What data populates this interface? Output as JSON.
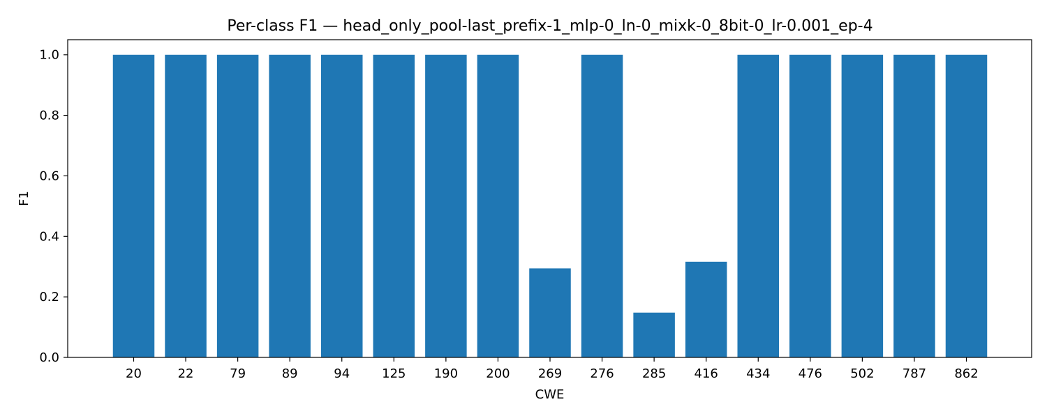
{
  "chart_data": {
    "type": "bar",
    "title": "Per-class F1 — head_only_pool-last_prefix-1_mlp-0_ln-0_mixk-0_8bit-0_lr-0.001_ep-4",
    "xlabel": "CWE",
    "ylabel": "F1",
    "categories": [
      "20",
      "22",
      "79",
      "89",
      "94",
      "125",
      "190",
      "200",
      "269",
      "276",
      "285",
      "416",
      "434",
      "476",
      "502",
      "787",
      "862"
    ],
    "values": [
      1.0,
      1.0,
      1.0,
      1.0,
      1.0,
      1.0,
      1.0,
      1.0,
      0.294,
      1.0,
      0.148,
      0.316,
      1.0,
      1.0,
      1.0,
      1.0,
      1.0
    ],
    "ylim": [
      0,
      1.05
    ],
    "yticks": [
      "0.0",
      "0.2",
      "0.4",
      "0.6",
      "0.8",
      "1.0"
    ],
    "grid": false,
    "bar_color": "#1f77b4",
    "axis_color": "#000000"
  }
}
